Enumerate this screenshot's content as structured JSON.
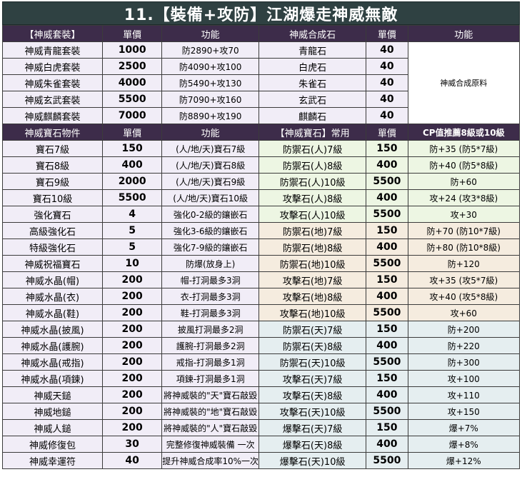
{
  "title": "11.【裝備+攻防】江湖爆走神威無敵",
  "set_header": [
    "【神威套裝】",
    "單價",
    "功能",
    "神威合成石",
    "單價",
    "功能"
  ],
  "set_rows": [
    {
      "name": "神威青龍套裝",
      "price": "1000",
      "func": "防2890+攻70",
      "stone": "青龍石",
      "sprice": "40"
    },
    {
      "name": "神威白虎套裝",
      "price": "2500",
      "func": "防4090+攻100",
      "stone": "白虎石",
      "sprice": "40"
    },
    {
      "name": "神威朱雀套裝",
      "price": "4000",
      "func": "防5490+攻130",
      "stone": "朱雀石",
      "sprice": "40"
    },
    {
      "name": "神威玄武套裝",
      "price": "5500",
      "func": "防7090+攻160",
      "stone": "玄武石",
      "sprice": "40"
    },
    {
      "name": "神威麒麟套裝",
      "price": "7000",
      "func": "防8890+攻190",
      "stone": "麒麟石",
      "sprice": "40"
    }
  ],
  "set_stone_func": "神威合成原料",
  "gem_header": [
    "神威寶石物件",
    "單價",
    "功能",
    "【神威寶石】常用",
    "單價",
    "CP值推薦8級或10級"
  ],
  "gem_rows": [
    {
      "name": "寶石7級",
      "price": "150",
      "func": "(人/地/天)寶石7級",
      "gem": "防禦石(人)7級",
      "gprice": "150",
      "cp": "防+35 (防5*7級)",
      "tone": "g"
    },
    {
      "name": "寶石8級",
      "price": "400",
      "func": "(人/地/天)寶石8級",
      "gem": "防禦石(人)8級",
      "gprice": "400",
      "cp": "防+40 (防5*8級)",
      "tone": "g"
    },
    {
      "name": "寶石9級",
      "price": "2000",
      "func": "(人/地/天)寶石9級",
      "gem": "防禦石(人)10級",
      "gprice": "5500",
      "cp": "防+60",
      "tone": "g"
    },
    {
      "name": "寶石10級",
      "price": "5500",
      "func": "(人/地/天)寶石10級",
      "gem": "攻擊石(人)8級",
      "gprice": "400",
      "cp": "攻+24 (攻3*8級)",
      "tone": "g"
    },
    {
      "name": "強化寶石",
      "price": "4",
      "func": "強化0-2級的鑲嵌石",
      "gem": "攻擊石(人)10級",
      "gprice": "5500",
      "cp": "攻+30",
      "tone": "g"
    },
    {
      "name": "高級強化石",
      "price": "5",
      "func": "強化3-6級的鑲嵌石",
      "gem": "防禦石(地)7級",
      "gprice": "150",
      "cp": "防+70 (防10*7級)",
      "tone": "b"
    },
    {
      "name": "特級強化石",
      "price": "5",
      "func": "強化7-9級的鑲嵌石",
      "gem": "防禦石(地)8級",
      "gprice": "400",
      "cp": "防+80 (防10*8級)",
      "tone": "b"
    },
    {
      "name": "神威祝福寶石",
      "price": "10",
      "func": "防爆(放身上)",
      "gem": "防禦石(地)10級",
      "gprice": "5500",
      "cp": "防+120",
      "tone": "b"
    },
    {
      "name": "神威水晶(帽)",
      "price": "200",
      "func": "帽-打洞最多3洞",
      "gem": "攻擊石(地)7級",
      "gprice": "150",
      "cp": "攻+35 (攻5*7級)",
      "tone": "b"
    },
    {
      "name": "神威水晶(衣)",
      "price": "200",
      "func": "衣-打洞最多3洞",
      "gem": "攻擊石(地)8級",
      "gprice": "400",
      "cp": "攻+40 (攻5*8級)",
      "tone": "b"
    },
    {
      "name": "神威水晶(鞋)",
      "price": "200",
      "func": "鞋-打洞最多3洞",
      "gem": "攻擊石(地)10級",
      "gprice": "5500",
      "cp": "攻+60",
      "tone": "b"
    },
    {
      "name": "神威水晶(披風)",
      "price": "200",
      "func": "披風打洞最多2洞",
      "gem": "防禦石(天)7級",
      "gprice": "150",
      "cp": "防+200",
      "tone": "c"
    },
    {
      "name": "神威水晶(護腕)",
      "price": "200",
      "func": "護腕-打洞最多2洞",
      "gem": "防禦石(天)8級",
      "gprice": "400",
      "cp": "防+220",
      "tone": "c"
    },
    {
      "name": "神威水晶(戒指)",
      "price": "200",
      "func": "戒指-打洞最多1洞",
      "gem": "防禦石(天)10級",
      "gprice": "5500",
      "cp": "防+300",
      "tone": "c"
    },
    {
      "name": "神威水晶(項鍊)",
      "price": "200",
      "func": "項鍊-打洞最多1洞",
      "gem": "攻擊石(天)7級",
      "gprice": "150",
      "cp": "攻+100",
      "tone": "c"
    },
    {
      "name": "神威天鎚",
      "price": "200",
      "func": "將神威裝的\"天\"寶石敲毀",
      "gem": "攻擊石(天)8級",
      "gprice": "400",
      "cp": "攻+110",
      "tone": "c"
    },
    {
      "name": "神威地鎚",
      "price": "200",
      "func": "將神威裝的\"地\"寶石敲毀",
      "gem": "攻擊石(天)10級",
      "gprice": "5500",
      "cp": "攻+150",
      "tone": "c"
    },
    {
      "name": "神威人鎚",
      "price": "200",
      "func": "將神威裝的\"人\"寶石敲毀",
      "gem": "爆擊石(天)7級",
      "gprice": "150",
      "cp": "爆+7%",
      "tone": "c"
    },
    {
      "name": "神威修復包",
      "price": "30",
      "func": "完整修復神威裝備 一次",
      "gem": "爆擊石(天)8級",
      "gprice": "400",
      "cp": "爆+8%",
      "tone": "c"
    },
    {
      "name": "神威幸運符",
      "price": "40",
      "func": "提升神威合成率10%一次",
      "gem": "爆擊石(天)10級",
      "gprice": "5500",
      "cp": "爆+12%",
      "tone": "c"
    }
  ]
}
